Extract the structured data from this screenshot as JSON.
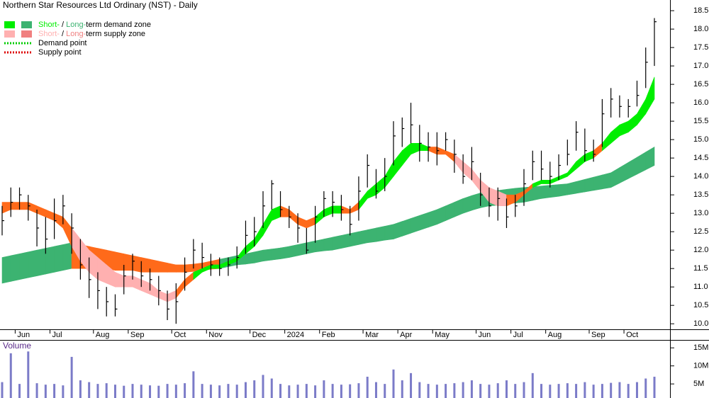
{
  "chart_data": {
    "type": "stock",
    "title": "Northern Star Resources Ltd Ordinary (NST) - Daily",
    "categories": [
      null,
      null,
      "Jun",
      null,
      null,
      null,
      "Jul",
      null,
      null,
      null,
      null,
      "Aug",
      null,
      null,
      null,
      "Sep",
      null,
      null,
      null,
      null,
      "Oct",
      null,
      null,
      null,
      "Nov",
      null,
      null,
      null,
      null,
      "Dec",
      null,
      null,
      null,
      "2024",
      null,
      null,
      null,
      "Feb",
      null,
      null,
      null,
      null,
      "Mar",
      null,
      null,
      null,
      "Apr",
      null,
      null,
      null,
      "May",
      null,
      null,
      null,
      null,
      "Jun",
      null,
      null,
      null,
      "Jul",
      null,
      null,
      null,
      "Aug",
      null,
      null,
      null,
      null,
      "Sep",
      null,
      null,
      null,
      "Oct",
      null,
      null,
      null
    ],
    "high": [
      13.2,
      13.7,
      13.7,
      13.5,
      13.1,
      12.9,
      13.4,
      13.5,
      13.0,
      12.3,
      11.8,
      11.4,
      11.0,
      10.8,
      11.6,
      11.9,
      11.7,
      11.5,
      11.3,
      10.9,
      11.1,
      11.8,
      12.3,
      12.2,
      11.9,
      11.8,
      11.8,
      12.1,
      12.8,
      12.9,
      13.6,
      13.9,
      13.6,
      13.2,
      13.0,
      12.6,
      13.2,
      13.6,
      13.6,
      13.5,
      13.2,
      14.0,
      14.6,
      14.2,
      14.5,
      15.5,
      15.6,
      16.0,
      15.4,
      15.2,
      15.2,
      15.2,
      15.0,
      14.6,
      14.8,
      14.1,
      13.7,
      13.7,
      13.4,
      13.5,
      14.2,
      14.7,
      14.7,
      14.4,
      14.6,
      15.0,
      15.5,
      15.3,
      15.0,
      16.1,
      16.4,
      16.2,
      16.1,
      16.6,
      17.5,
      18.3
    ],
    "low": [
      12.4,
      12.9,
      13.1,
      12.8,
      12.1,
      11.9,
      12.3,
      12.7,
      11.9,
      11.2,
      10.7,
      10.4,
      10.2,
      10.2,
      10.8,
      11.2,
      11.0,
      10.9,
      10.5,
      10.1,
      10.0,
      10.9,
      11.5,
      11.5,
      11.3,
      11.3,
      11.3,
      11.5,
      11.9,
      12.1,
      12.6,
      13.1,
      12.9,
      12.6,
      12.2,
      11.9,
      12.2,
      12.9,
      12.9,
      12.8,
      12.4,
      12.8,
      13.7,
      13.4,
      13.6,
      14.3,
      14.8,
      14.9,
      14.4,
      14.4,
      14.3,
      14.7,
      14.1,
      13.8,
      13.9,
      13.2,
      12.9,
      12.8,
      12.6,
      12.9,
      13.2,
      13.9,
      13.9,
      13.7,
      13.9,
      14.3,
      14.7,
      14.4,
      14.4,
      14.8,
      15.6,
      15.6,
      15.6,
      15.9,
      16.4,
      17.0
    ],
    "close": [
      12.8,
      13.3,
      13.5,
      13.2,
      12.6,
      12.3,
      12.8,
      13.2,
      12.6,
      11.6,
      11.2,
      10.9,
      10.6,
      10.4,
      11.3,
      11.7,
      11.3,
      11.2,
      10.9,
      10.4,
      10.6,
      11.4,
      12.0,
      11.8,
      11.6,
      11.5,
      11.6,
      11.8,
      12.4,
      12.5,
      13.2,
      13.8,
      13.1,
      12.9,
      12.6,
      12.0,
      12.9,
      13.4,
      13.3,
      13.1,
      12.7,
      13.6,
      14.3,
      13.6,
      14.0,
      15.1,
      15.3,
      15.4,
      14.9,
      14.8,
      14.7,
      15.0,
      14.6,
      14.0,
      14.4,
      13.5,
      13.2,
      13.4,
      12.9,
      13.2,
      13.8,
      14.4,
      14.2,
      14.0,
      14.3,
      14.6,
      15.2,
      14.7,
      14.6,
      15.7,
      16.1,
      15.9,
      15.9,
      16.2,
      17.1,
      18.2
    ],
    "bar_color": "#000000",
    "zones": {
      "long": {
        "upper": [
          11.8,
          11.85,
          11.9,
          11.95,
          12.0,
          12.05,
          12.1,
          12.15,
          12.2,
          12.15,
          12.1,
          12.05,
          12.0,
          11.95,
          11.9,
          11.85,
          11.8,
          11.75,
          11.7,
          11.65,
          11.6,
          11.6,
          11.62,
          11.65,
          11.7,
          11.75,
          11.8,
          11.85,
          11.9,
          11.95,
          12.0,
          12.03,
          12.06,
          12.1,
          12.15,
          12.2,
          12.25,
          12.3,
          12.35,
          12.4,
          12.45,
          12.5,
          12.55,
          12.6,
          12.65,
          12.7,
          12.78,
          12.86,
          12.94,
          13.02,
          13.1,
          13.2,
          13.3,
          13.4,
          13.48,
          13.55,
          13.6,
          13.62,
          13.65,
          13.68,
          13.7,
          13.72,
          13.74,
          13.76,
          13.78,
          13.8,
          13.86,
          13.92,
          13.98,
          14.04,
          14.1,
          14.24,
          14.38,
          14.52,
          14.66,
          14.8
        ],
        "lower": [
          11.1,
          11.15,
          11.2,
          11.25,
          11.3,
          11.35,
          11.4,
          11.45,
          11.5,
          11.5,
          11.5,
          11.5,
          11.5,
          11.45,
          11.45,
          11.45,
          11.4,
          11.4,
          11.4,
          11.4,
          11.4,
          11.4,
          11.42,
          11.45,
          11.48,
          11.5,
          11.55,
          11.6,
          11.62,
          11.65,
          11.7,
          11.73,
          11.76,
          11.8,
          11.85,
          11.9,
          11.95,
          11.98,
          12.0,
          12.05,
          12.1,
          12.15,
          12.2,
          12.23,
          12.27,
          12.3,
          12.38,
          12.46,
          12.54,
          12.62,
          12.7,
          12.8,
          12.9,
          13.0,
          13.08,
          13.15,
          13.2,
          13.22,
          13.25,
          13.28,
          13.3,
          13.35,
          13.4,
          13.43,
          13.46,
          13.5,
          13.54,
          13.58,
          13.62,
          13.66,
          13.7,
          13.82,
          13.94,
          14.06,
          14.18,
          14.3
        ],
        "colors": [
          "#3cb371",
          "#3cb371",
          "#3cb371",
          "#3cb371",
          "#3cb371",
          "#3cb371",
          "#3cb371",
          "#3cb371",
          "#ff6a1a",
          "#ff6a1a",
          "#ff6a1a",
          "#ff6a1a",
          "#ff6a1a",
          "#ff6a1a",
          "#ff6a1a",
          "#ff6a1a",
          "#ff6a1a",
          "#ff6a1a",
          "#ff6a1a",
          "#ff6a1a",
          "#ff6a1a",
          "#ff6a1a",
          "#ff6a1a",
          "#ff6a1a",
          "#ff6a1a",
          "#3cb371",
          "#3cb371",
          "#3cb371",
          "#3cb371",
          "#3cb371",
          "#3cb371",
          "#3cb371",
          "#3cb371",
          "#3cb371",
          "#3cb371",
          "#3cb371",
          "#3cb371",
          "#3cb371",
          "#3cb371",
          "#3cb371",
          "#3cb371",
          "#3cb371",
          "#3cb371",
          "#3cb371",
          "#3cb371",
          "#3cb371",
          "#3cb371",
          "#3cb371",
          "#3cb371",
          "#3cb371",
          "#3cb371",
          "#3cb371",
          "#3cb371",
          "#3cb371",
          "#3cb371",
          "#3cb371",
          "#3cb371",
          "#3cb371",
          "#3cb371",
          "#3cb371",
          "#3cb371",
          "#3cb371",
          "#3cb371",
          "#3cb371",
          "#3cb371",
          "#3cb371",
          "#3cb371",
          "#3cb371",
          "#3cb371",
          "#3cb371",
          "#3cb371",
          "#3cb371",
          "#3cb371",
          "#3cb371",
          "#3cb371",
          "#3cb371"
        ]
      },
      "short": {
        "upper": [
          13.3,
          13.3,
          13.3,
          13.3,
          13.2,
          13.1,
          13.0,
          12.9,
          12.6,
          12.3,
          12.0,
          11.8,
          11.6,
          11.4,
          11.3,
          11.3,
          11.2,
          11.1,
          10.9,
          10.8,
          10.9,
          11.2,
          11.4,
          11.5,
          11.6,
          11.6,
          11.7,
          11.8,
          12.1,
          12.3,
          12.7,
          13.1,
          13.2,
          13.1,
          12.9,
          12.8,
          12.9,
          13.1,
          13.2,
          13.2,
          13.1,
          13.3,
          13.6,
          13.8,
          14.0,
          14.4,
          14.7,
          14.9,
          14.9,
          14.8,
          14.8,
          14.7,
          14.6,
          14.4,
          14.2,
          13.9,
          13.7,
          13.6,
          13.5,
          13.5,
          13.6,
          13.8,
          13.9,
          13.9,
          14.0,
          14.1,
          14.4,
          14.6,
          14.7,
          14.9,
          15.2,
          15.4,
          15.5,
          15.7,
          16.1,
          16.7
        ],
        "lower": [
          13.0,
          13.1,
          13.1,
          13.1,
          13.0,
          12.9,
          12.8,
          12.6,
          12.1,
          11.7,
          11.4,
          11.2,
          11.1,
          11.0,
          11.0,
          11.0,
          10.9,
          10.8,
          10.7,
          10.6,
          10.7,
          11.0,
          11.2,
          11.4,
          11.5,
          11.5,
          11.6,
          11.7,
          11.9,
          12.1,
          12.4,
          12.8,
          12.9,
          12.9,
          12.7,
          12.6,
          12.7,
          12.9,
          13.0,
          13.0,
          13.0,
          13.1,
          13.4,
          13.5,
          13.7,
          14.0,
          14.3,
          14.6,
          14.7,
          14.7,
          14.6,
          14.6,
          14.4,
          14.1,
          13.9,
          13.6,
          13.3,
          13.2,
          13.2,
          13.3,
          13.5,
          13.7,
          13.8,
          13.8,
          13.9,
          14.0,
          14.2,
          14.4,
          14.5,
          14.7,
          14.9,
          15.1,
          15.2,
          15.4,
          15.7,
          16.1
        ],
        "colors": [
          "#ff6a1a",
          "#ff6a1a",
          "#ff6a1a",
          "#ff6a1a",
          "#ff6a1a",
          "#ff6a1a",
          "#ff6a1a",
          "#ff6a1a",
          "#ffb0b0",
          "#ffb0b0",
          "#ffb0b0",
          "#ffb0b0",
          "#ffb0b0",
          "#ffb0b0",
          "#ffb0b0",
          "#ffb0b0",
          "#ffb0b0",
          "#ffb0b0",
          "#ffb0b0",
          "#ffb0b0",
          "#ff6a1a",
          "#ff6a1a",
          "#00ee00",
          "#00ee00",
          "#00ee00",
          "#00ee00",
          "#00ee00",
          "#00ee00",
          "#00ee00",
          "#00ee00",
          "#00ee00",
          "#00ee00",
          "#ff6a1a",
          "#ff6a1a",
          "#ff6a1a",
          "#ff6a1a",
          "#00ee00",
          "#00ee00",
          "#00ee00",
          "#ff6a1a",
          "#ff6a1a",
          "#00ee00",
          "#00ee00",
          "#00ee00",
          "#00ee00",
          "#00ee00",
          "#00ee00",
          "#00ee00",
          "#00ee00",
          "#ff6a1a",
          "#ff6a1a",
          "#ff6a1a",
          "#ffb0b0",
          "#ffb0b0",
          "#ffb0b0",
          "#ffb0b0",
          "#ffb0b0",
          "#ffb0b0",
          "#ff6a1a",
          "#ff6a1a",
          "#ff6a1a",
          "#00ee00",
          "#00ee00",
          "#00ee00",
          "#00ee00",
          "#00ee00",
          "#00ee00",
          "#00ee00",
          "#ff6a1a",
          "#00ee00",
          "#00ee00",
          "#00ee00",
          "#00ee00",
          "#00ee00",
          "#00ee00",
          "#00ee00"
        ]
      }
    },
    "legend": [
      {
        "colors": [
          "#00ee00",
          "#3cb371"
        ],
        "parts": [
          "Short-",
          " / ",
          "Long-",
          "term demand zone"
        ]
      },
      {
        "colors": [
          "#ffb0b0",
          "#f08080"
        ],
        "parts": [
          "Short-",
          " / ",
          "Long-",
          "term supply zone"
        ]
      }
    ],
    "points": [
      {
        "color": "#00cc00",
        "label": "Demand point"
      },
      {
        "color": "#dd0000",
        "label": "Supply point"
      }
    ],
    "ylim": [
      9.85,
      18.79
    ],
    "yticks": [
      {
        "value": 10,
        "label": "10.0"
      },
      10.5,
      {
        "value": 11,
        "label": "11.0"
      },
      11.5,
      {
        "value": 12,
        "label": "12.0"
      },
      12.5,
      {
        "value": 13,
        "label": "13.0"
      },
      13.5,
      {
        "value": 14,
        "label": "14.0"
      },
      14.5,
      {
        "value": 15,
        "label": "15.0"
      },
      15.5,
      {
        "value": 16,
        "label": "16.0"
      },
      16.5,
      {
        "value": 17,
        "label": "17.0"
      },
      17.5,
      {
        "value": 18,
        "label": "18.0"
      },
      18.5
    ],
    "volume": {
      "title": "Volume",
      "color": "#7b7bc8",
      "values": [
        5500000,
        13500000,
        5000000,
        14000000,
        5200000,
        4800000,
        5000000,
        4600000,
        12500000,
        6000000,
        5500000,
        5000000,
        5200000,
        4800000,
        4500000,
        5000000,
        4800000,
        4600000,
        4500000,
        5000000,
        4800000,
        5200000,
        8500000,
        5000000,
        4800000,
        4600000,
        5000000,
        4800000,
        5500000,
        6000000,
        7500000,
        6500000,
        5000000,
        4600000,
        4800000,
        5000000,
        4600000,
        6000000,
        5000000,
        4800000,
        4900000,
        5200000,
        7000000,
        5500000,
        5000000,
        9000000,
        6000000,
        8000000,
        5500000,
        5000000,
        4800000,
        5000000,
        5200000,
        5500000,
        6000000,
        5000000,
        4800000,
        5200000,
        6000000,
        5000000,
        5500000,
        8000000,
        5000000,
        4800000,
        5000000,
        5200000,
        5000000,
        5500000,
        4800000,
        5000000,
        5300000,
        5500000,
        5000000,
        5500000,
        6500000,
        7000000
      ],
      "ylim": [
        1100000,
        17000000
      ],
      "yticks": [
        {
          "value": 5000000,
          "label": "5M"
        },
        {
          "value": 10000000,
          "label": "10M"
        },
        {
          "value": 15000000,
          "label": "15M"
        }
      ]
    }
  }
}
